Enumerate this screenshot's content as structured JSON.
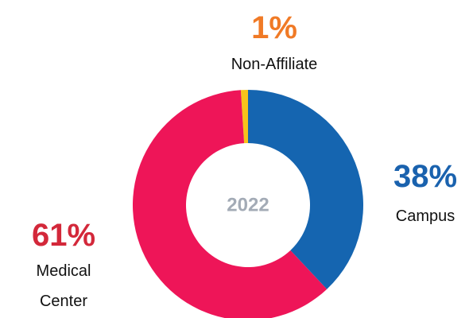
{
  "chart_data": {
    "type": "donut",
    "center_label": "2022",
    "categories": [
      "Campus",
      "Medical Center",
      "Non-Affiliate"
    ],
    "values": [
      38,
      61,
      1
    ],
    "value_labels": [
      "38%",
      "61%",
      "1%"
    ],
    "colors": [
      "#1565b0",
      "#ee1558",
      "#f7c31b"
    ],
    "label_colors": [
      "#1a62ae",
      "#d3283a",
      "#f07a26"
    ]
  }
}
